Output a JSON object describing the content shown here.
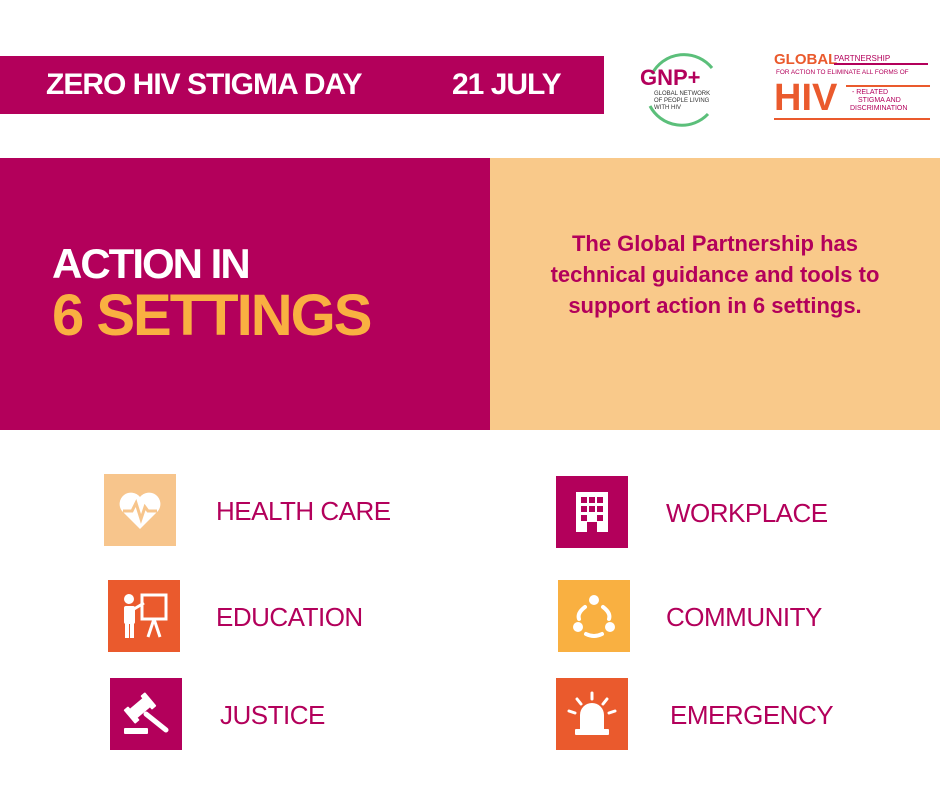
{
  "colors": {
    "magenta": "#b3005b",
    "orange": "#f9b041",
    "peach": "#f9c98a",
    "light_peach": "#f7c58c",
    "red_orange": "#ea5a2d",
    "gnp_green": "#5bbf7a"
  },
  "banner": {
    "title": "ZERO HIV STIGMA DAY",
    "date": "21 JULY"
  },
  "logos": {
    "gnp": {
      "mark": "GNP+",
      "line1": "GLOBAL NETWORK",
      "line2": "OF PEOPLE LIVING",
      "line3": "WITH HIV"
    },
    "partnership": {
      "word1": "GLOBAL",
      "word2": "PARTNERSHIP",
      "line2": "FOR ACTION TO ELIMINATE ALL FORMS OF",
      "big": "HIV",
      "line3": "- RELATED",
      "line4": "STIGMA AND",
      "line5": "DISCRIMINATION"
    }
  },
  "hero": {
    "line1": "ACTION IN",
    "line2": "6 SETTINGS",
    "description": "The Global Partnership has technical guidance and tools to support action in 6 settings."
  },
  "settings": [
    {
      "label": "HEALTH CARE",
      "icon": "heart-pulse-icon"
    },
    {
      "label": "WORKPLACE",
      "icon": "office-building-icon"
    },
    {
      "label": "EDUCATION",
      "icon": "teacher-board-icon"
    },
    {
      "label": "COMMUNITY",
      "icon": "people-circle-icon"
    },
    {
      "label": "JUSTICE",
      "icon": "gavel-icon"
    },
    {
      "label": "EMERGENCY",
      "icon": "siren-icon"
    }
  ]
}
